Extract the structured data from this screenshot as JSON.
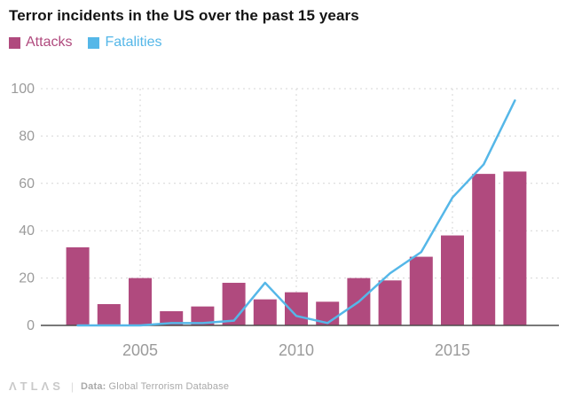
{
  "title": "Terror incidents in the US over the past 15 years",
  "legend": {
    "items": [
      {
        "label": "Attacks",
        "color": "#b04a7e"
      },
      {
        "label": "Fatalities",
        "color": "#55b7e8"
      }
    ]
  },
  "footer": {
    "logo": "ΛTLΛS",
    "divider": "|",
    "source_label": "Data:",
    "source_value": "Global Terrorism Database"
  },
  "chart_data": {
    "type": "bar+line",
    "title": "Terror incidents in the US over the past 15 years",
    "x": [
      2003,
      2004,
      2005,
      2006,
      2007,
      2008,
      2009,
      2010,
      2011,
      2012,
      2013,
      2014,
      2015,
      2016,
      2017
    ],
    "series": [
      {
        "name": "Attacks",
        "type": "bar",
        "color": "#b04a7e",
        "values": [
          33,
          9,
          20,
          6,
          8,
          18,
          11,
          14,
          10,
          20,
          19,
          29,
          38,
          64,
          65
        ]
      },
      {
        "name": "Fatalities",
        "type": "line",
        "color": "#55b7e8",
        "values": [
          0,
          0,
          0,
          1,
          1,
          2,
          18,
          4,
          1,
          10,
          22,
          31,
          54,
          68,
          95
        ]
      }
    ],
    "ylim": [
      0,
      100
    ],
    "yticks": [
      0,
      20,
      40,
      60,
      80,
      100
    ],
    "xticks": [
      2005,
      2010,
      2015
    ],
    "grid": "dashed",
    "legend_position": "top-left",
    "axis_text_color": "#9b9b9b",
    "gridline_color": "#d6d6d6",
    "baseline_color": "#4d4d4d"
  }
}
